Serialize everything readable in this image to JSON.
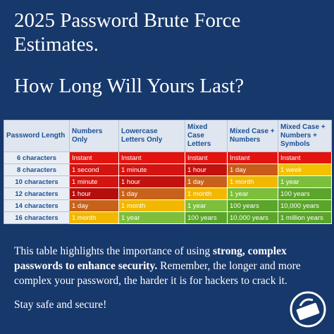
{
  "header": {
    "title": "2025 Password Brute Force Estimates.",
    "subtitle": "How Long Will Yours Last?"
  },
  "table": {
    "columns": [
      "Password Length",
      "Numbers Only",
      "Lowercase Letters Only",
      "Mixed Case Letters",
      "Mixed Case + Numbers",
      "Mixed Case + Numbers + Symbols"
    ],
    "rows": [
      [
        "6 characters",
        "Instant",
        "Instant",
        "Instant",
        "Instant",
        "Instant"
      ],
      [
        "8 characters",
        "1 second",
        "1 minute",
        "1 hour",
        "1 day",
        "1 week"
      ],
      [
        "10 characters",
        "1 minute",
        "1 hour",
        "1 day",
        "1 month",
        "1 year"
      ],
      [
        "12 characters",
        "1 hour",
        "1 day",
        "1 month",
        "1 year",
        "100 years"
      ],
      [
        "14 characters",
        "1 day",
        "1 month",
        "1 year",
        "100 years",
        "10,000 years"
      ],
      [
        "16 characters",
        "1 month",
        "1 year",
        "100 years",
        "10,000 years",
        "1 million years"
      ]
    ],
    "colors": [
      [
        "#e3140f",
        "#e3140f",
        "#e3140f",
        "#e3140f",
        "#e3140f"
      ],
      [
        "#d31410",
        "#d31410",
        "#c2120f",
        "#c85a1a",
        "#f4c000"
      ],
      [
        "#d31410",
        "#c2120f",
        "#c8621a",
        "#f2b800",
        "#7dbf3a"
      ],
      [
        "#b3100d",
        "#c8621a",
        "#f2b800",
        "#7dbf3a",
        "#5aa52a"
      ],
      [
        "#c8621a",
        "#f2b800",
        "#7dbf3a",
        "#5aa52a",
        "#5aa52a"
      ],
      [
        "#f2b800",
        "#7dbf3a",
        "#5aa52a",
        "#5aa52a",
        "#5aa52a"
      ]
    ]
  },
  "body": {
    "paragraph": [
      "This table highlights the importance of using ",
      "strong, complex passwords to enhance security.",
      " Remember, the longer and more complex your password, the harder it is for hackers to crack it."
    ],
    "closing": "Stay safe and secure!"
  }
}
